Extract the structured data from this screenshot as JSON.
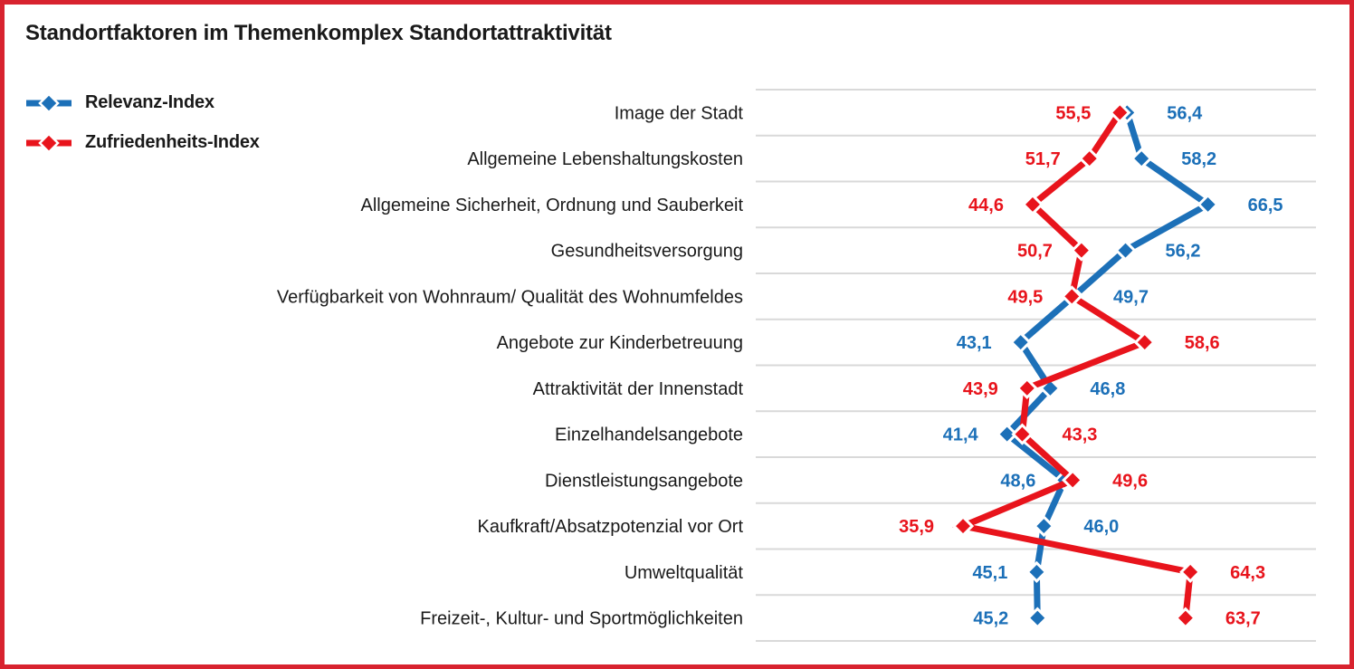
{
  "page": {
    "title": "Standortfaktoren im Themenkomplex Standortattraktivität",
    "frame_border_color": "#d8232f",
    "background_color": "#ffffff"
  },
  "legend": {
    "items": [
      {
        "label": "Relevanz-Index",
        "color": "#1c70b8"
      },
      {
        "label": "Zufriedenheits-Index",
        "color": "#e8141c"
      }
    ]
  },
  "chart_data": {
    "type": "line",
    "variant": "vertical-profile-dot-plot",
    "title": "Standortfaktoren im Themenkomplex Standortattraktivität",
    "categories": [
      "Image der Stadt",
      "Allgemeine Lebenshaltungskosten",
      "Allgemeine Sicherheit, Ordnung und Sauberkeit",
      "Gesundheitsversorgung",
      "Verfügbarkeit von Wohnraum/ Qualität des Wohnumfeldes",
      "Angebote zur Kinderbetreuung",
      "Attraktivität der Innenstadt",
      "Einzelhandelsangebote",
      "Dienstleistungsangebote",
      "Kaufkraft/Absatzpotenzial vor Ort",
      "Umweltqualität",
      "Freizeit-, Kultur- und Sportmöglichkeiten"
    ],
    "series": [
      {
        "name": "Relevanz-Index",
        "color": "#1c70b8",
        "values": [
          56.4,
          58.2,
          66.5,
          56.2,
          49.7,
          43.1,
          46.8,
          41.4,
          48.6,
          46.0,
          45.1,
          45.2
        ]
      },
      {
        "name": "Zufriedenheits-Index",
        "color": "#e8141c",
        "values": [
          55.5,
          51.7,
          44.6,
          50.7,
          49.5,
          58.6,
          43.9,
          43.3,
          49.6,
          35.9,
          64.3,
          63.7
        ]
      }
    ],
    "xlim": [
      10,
      80
    ],
    "grid": "horizontal-row-separators",
    "grid_color": "#d9d9d9",
    "legend_position": "top-left",
    "marker": "diamond",
    "marker_outline_color": "#ffffff",
    "value_label_decimal_separator": ",",
    "value_label_placement": "min-value-left, max-value-right",
    "category_label_color": "#1a1a1a"
  }
}
